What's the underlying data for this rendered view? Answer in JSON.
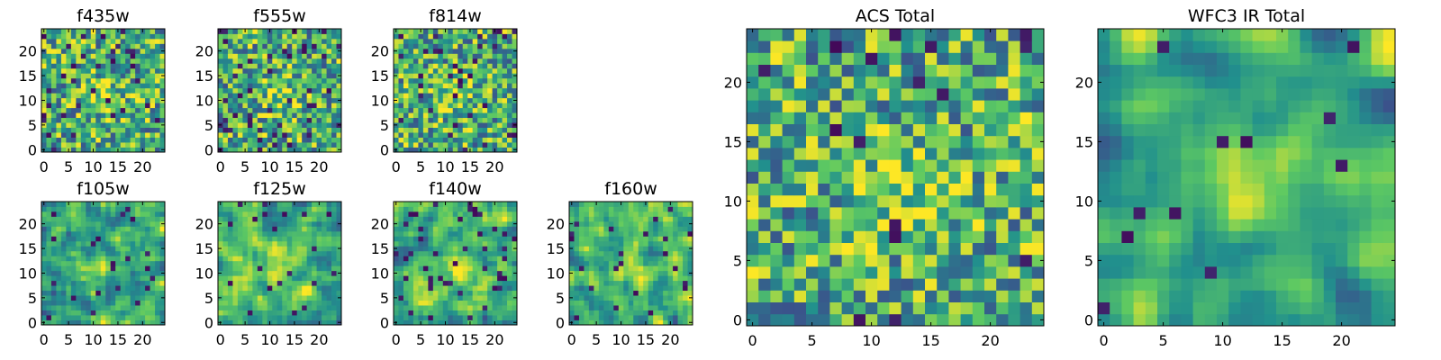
{
  "chart_data": [
    {
      "type": "heatmap",
      "title": "f435w",
      "xlim": [
        0,
        24
      ],
      "ylim": [
        0,
        24
      ],
      "xticks": [
        "0",
        "5",
        "10",
        "15",
        "20"
      ],
      "yticks": [
        "0",
        "5",
        "10",
        "15",
        "20"
      ],
      "seed": 11,
      "smooth": 0,
      "dark_rate": 0.06
    },
    {
      "type": "heatmap",
      "title": "f555w",
      "xlim": [
        0,
        24
      ],
      "ylim": [
        0,
        24
      ],
      "xticks": [
        "0",
        "5",
        "10",
        "15",
        "20"
      ],
      "yticks": [
        "0",
        "5",
        "10",
        "15",
        "20"
      ],
      "seed": 23,
      "smooth": 0,
      "dark_rate": 0.06
    },
    {
      "type": "heatmap",
      "title": "f814w",
      "xlim": [
        0,
        24
      ],
      "ylim": [
        0,
        24
      ],
      "xticks": [
        "0",
        "5",
        "10",
        "15",
        "20"
      ],
      "yticks": [
        "0",
        "5",
        "10",
        "15",
        "20"
      ],
      "seed": 37,
      "smooth": 0,
      "dark_rate": 0.06
    },
    {
      "type": "heatmap",
      "title": "f105w",
      "xlim": [
        0,
        24
      ],
      "ylim": [
        0,
        24
      ],
      "xticks": [
        "0",
        "5",
        "10",
        "15",
        "20"
      ],
      "yticks": [
        "0",
        "5",
        "10",
        "15",
        "20"
      ],
      "seed": 41,
      "smooth": 1,
      "dark_rate": 0.04
    },
    {
      "type": "heatmap",
      "title": "f125w",
      "xlim": [
        0,
        24
      ],
      "ylim": [
        0,
        24
      ],
      "xticks": [
        "0",
        "5",
        "10",
        "15",
        "20"
      ],
      "yticks": [
        "0",
        "5",
        "10",
        "15",
        "20"
      ],
      "seed": 53,
      "smooth": 1,
      "dark_rate": 0.04
    },
    {
      "type": "heatmap",
      "title": "f140w",
      "xlim": [
        0,
        24
      ],
      "ylim": [
        0,
        24
      ],
      "xticks": [
        "0",
        "5",
        "10",
        "15",
        "20"
      ],
      "yticks": [
        "0",
        "5",
        "10",
        "15",
        "20"
      ],
      "seed": 67,
      "smooth": 1,
      "dark_rate": 0.05
    },
    {
      "type": "heatmap",
      "title": "f160w",
      "xlim": [
        0,
        24
      ],
      "ylim": [
        0,
        24
      ],
      "xticks": [
        "0",
        "5",
        "10",
        "15",
        "20"
      ],
      "yticks": [
        "0",
        "5",
        "10",
        "15",
        "20"
      ],
      "seed": 79,
      "smooth": 1,
      "dark_rate": 0.05
    },
    {
      "type": "heatmap",
      "title": "ACS Total",
      "xlim": [
        0,
        24
      ],
      "ylim": [
        0,
        24
      ],
      "xticks": [
        "0",
        "5",
        "10",
        "15",
        "20"
      ],
      "yticks": [
        "0",
        "5",
        "10",
        "15",
        "20"
      ],
      "seed": 97,
      "smooth": 0,
      "dark_rate": 0.03
    },
    {
      "type": "heatmap",
      "title": "WFC3 IR Total",
      "xlim": [
        0,
        24
      ],
      "ylim": [
        0,
        24
      ],
      "xticks": [
        "0",
        "5",
        "10",
        "15",
        "20"
      ],
      "yticks": [
        "0",
        "5",
        "10",
        "15",
        "20"
      ],
      "seed": 113,
      "smooth": 2,
      "dark_rate": 0.02
    }
  ],
  "colormap": [
    "#440154",
    "#3b528b",
    "#21908d",
    "#5dc962",
    "#fde725"
  ]
}
